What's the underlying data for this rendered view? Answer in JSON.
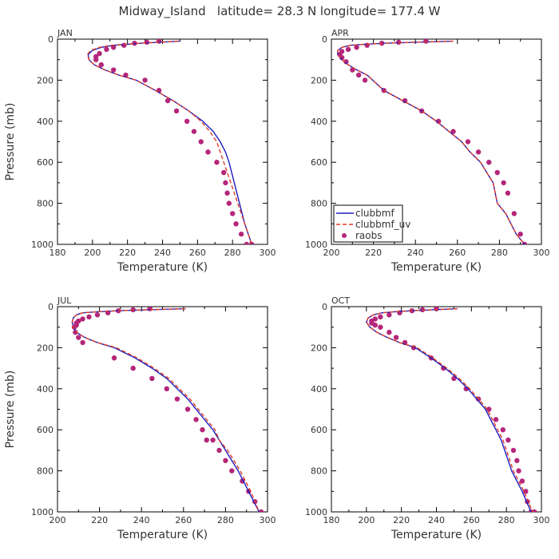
{
  "title": "Midway_Island   latitude= 28.3 N longitude= 177.4 W",
  "colors": {
    "clubbmf": "#1f1fbf",
    "clubbmf_uv": "#e03c28",
    "raobs": "#b5267a"
  },
  "chart_data": [
    {
      "type": "line",
      "panel": "JAN",
      "xlabel": "Temperature (K)",
      "ylabel": "Pressure (mb)",
      "xlim": [
        180,
        300
      ],
      "ylim": [
        1000,
        0
      ],
      "xticks": [
        180,
        200,
        220,
        240,
        260,
        280,
        300
      ],
      "yticks": [
        0,
        200,
        400,
        600,
        800,
        1000
      ],
      "grid": false,
      "legend": false,
      "series": [
        {
          "name": "clubbmf",
          "style": "solid",
          "x": [
            250,
            238,
            228,
            220,
            212,
            205,
            200,
            197.5,
            198,
            201,
            207,
            215,
            225,
            236,
            246,
            255,
            263,
            269,
            273,
            276,
            278,
            281,
            284,
            287,
            289,
            291
          ],
          "y": [
            10,
            15,
            20,
            25,
            30,
            40,
            55,
            75,
            100,
            125,
            150,
            175,
            200,
            250,
            300,
            350,
            400,
            450,
            500,
            550,
            600,
            700,
            800,
            900,
            950,
            1000
          ]
        },
        {
          "name": "clubbmf_uv",
          "style": "dashed",
          "x": [
            249,
            237,
            227,
            219,
            211,
            204,
            199,
            197,
            198,
            201,
            207,
            215,
            225,
            236,
            246,
            255,
            262,
            267,
            271,
            273,
            275,
            279,
            283,
            287,
            289,
            291
          ],
          "y": [
            10,
            15,
            20,
            25,
            30,
            40,
            55,
            75,
            100,
            125,
            150,
            175,
            200,
            250,
            300,
            350,
            400,
            450,
            500,
            550,
            600,
            700,
            800,
            900,
            950,
            1000
          ]
        },
        {
          "name": "raobs",
          "style": "markers",
          "x": [
            238,
            231,
            224,
            218,
            212,
            208,
            204,
            202,
            202,
            205,
            212,
            219,
            230,
            238,
            243,
            248,
            254,
            258,
            262,
            266,
            271,
            275,
            276,
            277,
            278,
            280,
            282,
            285,
            288,
            291
          ],
          "y": [
            10,
            15,
            20,
            30,
            40,
            50,
            70,
            85,
            100,
            125,
            150,
            175,
            200,
            250,
            300,
            350,
            400,
            450,
            500,
            550,
            600,
            650,
            700,
            750,
            800,
            850,
            900,
            950,
            1000,
            1000
          ]
        }
      ]
    },
    {
      "type": "line",
      "panel": "APR",
      "xlabel": "Temperature (K)",
      "ylabel": "",
      "xlim": [
        200,
        300
      ],
      "ylim": [
        1000,
        0
      ],
      "xticks": [
        200,
        220,
        240,
        260,
        280,
        300
      ],
      "yticks": [
        0,
        200,
        400,
        600,
        800,
        1000
      ],
      "grid": false,
      "legend": true,
      "legend_position": "bottom-left",
      "series": [
        {
          "name": "clubbmf",
          "style": "solid",
          "x": [
            258,
            240,
            226,
            216,
            209,
            205,
            203,
            203,
            205,
            208,
            212,
            217,
            225,
            234,
            243,
            250,
            256,
            262,
            266,
            271,
            274,
            277,
            279,
            283,
            288,
            292
          ],
          "y": [
            10,
            15,
            20,
            25,
            30,
            40,
            55,
            75,
            100,
            125,
            150,
            175,
            250,
            300,
            350,
            400,
            450,
            500,
            550,
            600,
            650,
            700,
            800,
            850,
            950,
            1000
          ]
        },
        {
          "name": "clubbmf_uv",
          "style": "dashed",
          "x": [
            258,
            240,
            226,
            216,
            209,
            205,
            203,
            203,
            205,
            208,
            212,
            217,
            225,
            234,
            243,
            250,
            256,
            262,
            266,
            271,
            274,
            277,
            279,
            283,
            288,
            292
          ],
          "y": [
            10,
            15,
            20,
            25,
            30,
            40,
            55,
            75,
            100,
            125,
            150,
            175,
            250,
            300,
            350,
            400,
            450,
            500,
            550,
            600,
            650,
            700,
            800,
            850,
            950,
            1000
          ]
        },
        {
          "name": "raobs",
          "style": "markers",
          "x": [
            245,
            232,
            224,
            217,
            212,
            208,
            205,
            204,
            205,
            207,
            210,
            213,
            216,
            225,
            235,
            243,
            251,
            258,
            265,
            270,
            275,
            279,
            282,
            284,
            287,
            290,
            292
          ],
          "y": [
            10,
            15,
            20,
            30,
            40,
            50,
            60,
            75,
            90,
            110,
            150,
            175,
            200,
            250,
            300,
            350,
            400,
            450,
            500,
            550,
            600,
            650,
            700,
            750,
            850,
            950,
            1000
          ]
        }
      ]
    },
    {
      "type": "line",
      "panel": "JUL",
      "xlabel": "Temperature (K)",
      "ylabel": "Pressure (mb)",
      "xlim": [
        200,
        300
      ],
      "ylim": [
        1000,
        0
      ],
      "xticks": [
        200,
        220,
        240,
        260,
        280,
        300
      ],
      "yticks": [
        0,
        200,
        400,
        600,
        800,
        1000
      ],
      "grid": false,
      "legend": false,
      "series": [
        {
          "name": "clubbmf",
          "style": "solid",
          "x": [
            261,
            243,
            229,
            219,
            212,
            209,
            207.5,
            207,
            207.5,
            209,
            213,
            219,
            227,
            237,
            245,
            252,
            257,
            262,
            266,
            270,
            274,
            277,
            280,
            286,
            291,
            296
          ],
          "y": [
            10,
            15,
            20,
            25,
            30,
            40,
            55,
            75,
            100,
            125,
            150,
            175,
            200,
            250,
            300,
            350,
            400,
            450,
            500,
            550,
            600,
            650,
            700,
            800,
            900,
            1000
          ]
        },
        {
          "name": "clubbmf_uv",
          "style": "dashed",
          "x": [
            261,
            243,
            229,
            219,
            212,
            209,
            207.5,
            207,
            207.5,
            209,
            213,
            219,
            228,
            238,
            246,
            253,
            258,
            263,
            267,
            271,
            275,
            277,
            281,
            287,
            292,
            296
          ],
          "y": [
            10,
            15,
            20,
            25,
            30,
            40,
            55,
            75,
            100,
            125,
            150,
            175,
            200,
            250,
            300,
            350,
            400,
            450,
            500,
            550,
            600,
            650,
            700,
            800,
            900,
            1000
          ]
        },
        {
          "name": "raobs",
          "style": "markers",
          "x": [
            244,
            236,
            229,
            224,
            219,
            215,
            212,
            210,
            209,
            209,
            208,
            208.5,
            210,
            212,
            227,
            236,
            245,
            252,
            257,
            262,
            266,
            269,
            271,
            274,
            277,
            280,
            283,
            288,
            291,
            294,
            297
          ],
          "y": [
            10,
            15,
            20,
            30,
            40,
            50,
            60,
            70,
            80,
            90,
            100,
            125,
            150,
            175,
            250,
            300,
            350,
            400,
            450,
            500,
            550,
            600,
            650,
            650,
            700,
            750,
            800,
            850,
            900,
            950,
            1000
          ]
        }
      ]
    },
    {
      "type": "line",
      "panel": "OCT",
      "xlabel": "Temperature (K)",
      "ylabel": "",
      "xlim": [
        180,
        300
      ],
      "ylim": [
        1000,
        0
      ],
      "xticks": [
        180,
        200,
        220,
        240,
        260,
        280,
        300
      ],
      "yticks": [
        0,
        200,
        400,
        600,
        800,
        1000
      ],
      "grid": false,
      "legend": false,
      "series": [
        {
          "name": "clubbmf",
          "style": "solid",
          "x": [
            252,
            238,
            226,
            216,
            209,
            204,
            201,
            200,
            202,
            206,
            212,
            219,
            228,
            237,
            245,
            252,
            258,
            263,
            268,
            271,
            274,
            277,
            279,
            283,
            289,
            294
          ],
          "y": [
            10,
            15,
            20,
            25,
            30,
            40,
            55,
            75,
            100,
            125,
            150,
            175,
            200,
            250,
            300,
            350,
            400,
            450,
            500,
            550,
            600,
            650,
            700,
            800,
            900,
            1000
          ]
        },
        {
          "name": "clubbmf_uv",
          "style": "dashed",
          "x": [
            252,
            238,
            226,
            216,
            209,
            204,
            201,
            200,
            202,
            206,
            212,
            219,
            229,
            238,
            246,
            253,
            259,
            264,
            269,
            272,
            275,
            278,
            280,
            284,
            290,
            295
          ],
          "y": [
            10,
            15,
            20,
            25,
            30,
            40,
            55,
            75,
            100,
            125,
            150,
            175,
            200,
            250,
            300,
            350,
            400,
            450,
            500,
            550,
            600,
            650,
            700,
            800,
            900,
            1000
          ]
        },
        {
          "name": "raobs",
          "style": "markers",
          "x": [
            240,
            232,
            226,
            219,
            213,
            208,
            205,
            203,
            203,
            205,
            208,
            213,
            217,
            222,
            227,
            237,
            244,
            250,
            257,
            264,
            270,
            274,
            278,
            281,
            284,
            286,
            287,
            289,
            291,
            292,
            294,
            296
          ],
          "y": [
            10,
            15,
            20,
            30,
            40,
            50,
            60,
            70,
            80,
            90,
            100,
            125,
            150,
            175,
            200,
            250,
            300,
            350,
            400,
            450,
            500,
            550,
            600,
            650,
            700,
            750,
            800,
            850,
            900,
            950,
            1000,
            1000
          ]
        }
      ]
    }
  ]
}
